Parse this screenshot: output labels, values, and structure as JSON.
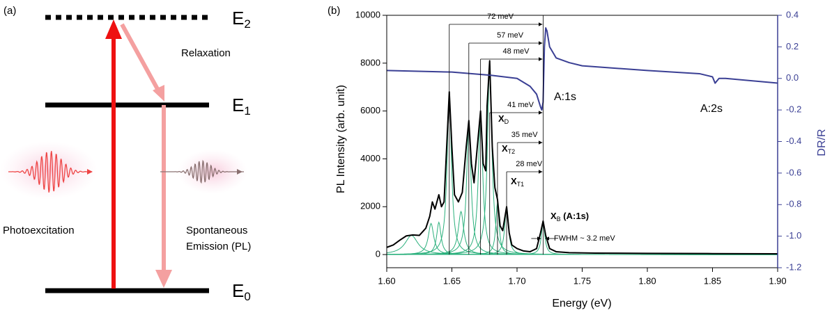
{
  "panel_a": {
    "label": "(a)",
    "levels": [
      {
        "base": "E",
        "sub": "2"
      },
      {
        "base": "E",
        "sub": "1"
      },
      {
        "base": "E",
        "sub": "0"
      }
    ],
    "relaxation": "Relaxation",
    "photoexcitation": "Photoexcitation",
    "emission": [
      "Spontaneous",
      "Emission (PL)"
    ]
  },
  "chart_data": {
    "type": "line",
    "panel_label": "(b)",
    "xlabel": "Energy (eV)",
    "ylabel": "PL Intensity (arb. unit)",
    "y2label": "DR/R",
    "xlim": [
      1.6,
      1.9
    ],
    "xticks": [
      {
        "value": 1.6,
        "label": "1.60"
      },
      1.65,
      {
        "value": 1.7,
        "label": "1.70"
      },
      1.75,
      {
        "value": 1.8,
        "label": "1.80"
      },
      1.85,
      {
        "value": 1.9,
        "label": "1.90"
      }
    ],
    "ylim": [
      -550,
      10000
    ],
    "yticks": [
      0,
      2000,
      4000,
      6000,
      8000,
      10000
    ],
    "y2lim": [
      -1.2,
      0.4
    ],
    "y2ticks": [
      -1.2,
      {
        "value": -1,
        "label": "-1.0"
      },
      -0.8,
      -0.6,
      -0.4,
      -0.2,
      {
        "value": 0,
        "label": "0.0"
      },
      0.2,
      0.4
    ],
    "y2color": "#3a3f94",
    "series": [
      {
        "color": "#000000",
        "x": [
          1.6,
          1.605,
          1.61,
          1.615,
          1.62,
          1.625,
          1.63,
          1.633,
          1.635,
          1.637,
          1.64,
          1.642,
          1.644,
          1.646,
          1.648,
          1.65,
          1.652,
          1.655,
          1.658,
          1.661,
          1.663,
          1.665,
          1.667,
          1.669,
          1.672,
          1.674,
          1.676,
          1.677,
          1.679,
          1.681,
          1.683,
          1.685,
          1.687,
          1.689,
          1.692,
          1.694,
          1.696,
          1.7,
          1.705,
          1.71,
          1.715,
          1.718,
          1.72,
          1.722,
          1.725,
          1.73,
          1.74,
          1.76,
          1.8,
          1.85,
          1.9
        ],
        "values": [
          300,
          400,
          600,
          780,
          820,
          800,
          1100,
          1600,
          2200,
          1900,
          2500,
          2000,
          2200,
          4500,
          6800,
          4500,
          2500,
          2200,
          2600,
          4500,
          5600,
          3800,
          3000,
          4200,
          6000,
          3800,
          3500,
          6200,
          8100,
          4500,
          2800,
          2300,
          1200,
          1000,
          2000,
          900,
          400,
          250,
          150,
          120,
          250,
          900,
          1400,
          800,
          250,
          120,
          80,
          60,
          50,
          40,
          30
        ]
      },
      {
        "color": "#3a3f94",
        "axis": "y2",
        "x": [
          1.6,
          1.65,
          1.68,
          1.7,
          1.71,
          1.715,
          1.718,
          1.719,
          1.72,
          1.721,
          1.722,
          1.723,
          1.725,
          1.73,
          1.74,
          1.75,
          1.8,
          1.84,
          1.85,
          1.852,
          1.855,
          1.86,
          1.9
        ],
        "values": [
          0.05,
          0.04,
          0.02,
          0.0,
          -0.05,
          -0.1,
          -0.18,
          -0.2,
          -0.15,
          0.2,
          0.32,
          0.3,
          0.2,
          0.13,
          0.1,
          0.08,
          0.05,
          0.03,
          0.01,
          -0.03,
          0.0,
          0.0,
          -0.03
        ]
      }
    ],
    "peak_color": "#2bb07c",
    "peaks": [
      {
        "center": 1.619,
        "height": 800,
        "fwhm": 0.012
      },
      {
        "center": 1.634,
        "height": 1300,
        "fwhm": 0.005
      },
      {
        "center": 1.64,
        "height": 1350,
        "fwhm": 0.004
      },
      {
        "center": 1.648,
        "height": 6700,
        "fwhm": 0.004
      },
      {
        "center": 1.657,
        "height": 1800,
        "fwhm": 0.005
      },
      {
        "center": 1.663,
        "height": 5500,
        "fwhm": 0.004
      },
      {
        "center": 1.672,
        "height": 5900,
        "fwhm": 0.004
      },
      {
        "center": 1.679,
        "height": 8000,
        "fwhm": 0.004
      },
      {
        "center": 1.685,
        "height": 2200,
        "fwhm": 0.003
      },
      {
        "center": 1.692,
        "height": 2000,
        "fwhm": 0.0035
      },
      {
        "center": 1.72,
        "height": 1350,
        "fwhm": 0.0032
      }
    ],
    "energy_gaps": [
      "72 meV",
      "57 meV",
      "48 meV",
      "41 meV",
      "35 meV",
      "28 meV"
    ],
    "exciton_labels": [
      {
        "base": "X",
        "sub": "D"
      },
      {
        "base": "X",
        "sub": "T2"
      },
      {
        "base": "X",
        "sub": "T1"
      },
      {
        "base": "X",
        "sub": "B",
        "rest": " (A:1s)"
      }
    ],
    "fwhm_label": "FWHM ~ 3.2 meV",
    "dr_labels": [
      "A:1s",
      "A:2s"
    ]
  }
}
